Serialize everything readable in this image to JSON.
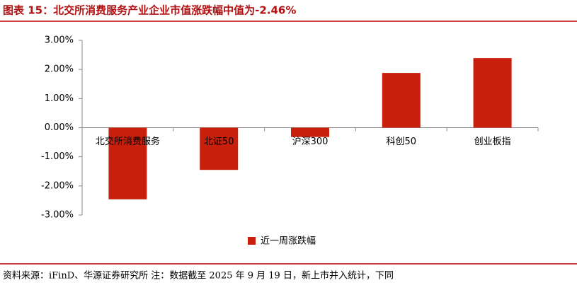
{
  "title": "图表 15：北交所消费服务产业企业市值涨跌幅中值为-2.46%",
  "source": "资料来源：iFinD、华源证券研究所   注：数据截至 2025 年 9 月 19 日，新上市并入统计，下同",
  "chart_data": {
    "type": "bar",
    "categories": [
      "北交所消费服务",
      "北证50",
      "沪深300",
      "科创50",
      "创业板指"
    ],
    "series": [
      {
        "name": "近一周涨跌幅",
        "color": "#c8200c",
        "values": [
          -2.46,
          -1.45,
          -0.32,
          1.88,
          2.39
        ]
      }
    ],
    "ylim": [
      -3,
      3
    ],
    "yticks": [
      {
        "value": -3,
        "label": "-3.00%"
      },
      {
        "value": -2,
        "label": "-2.00%"
      },
      {
        "value": -1,
        "label": "-1.00%"
      },
      {
        "value": 0,
        "label": "0.00%"
      },
      {
        "value": 1,
        "label": "1.00%"
      },
      {
        "value": 2,
        "label": "2.00%"
      },
      {
        "value": 3,
        "label": "3.00%"
      }
    ],
    "grid": false,
    "legend": "bottom"
  }
}
